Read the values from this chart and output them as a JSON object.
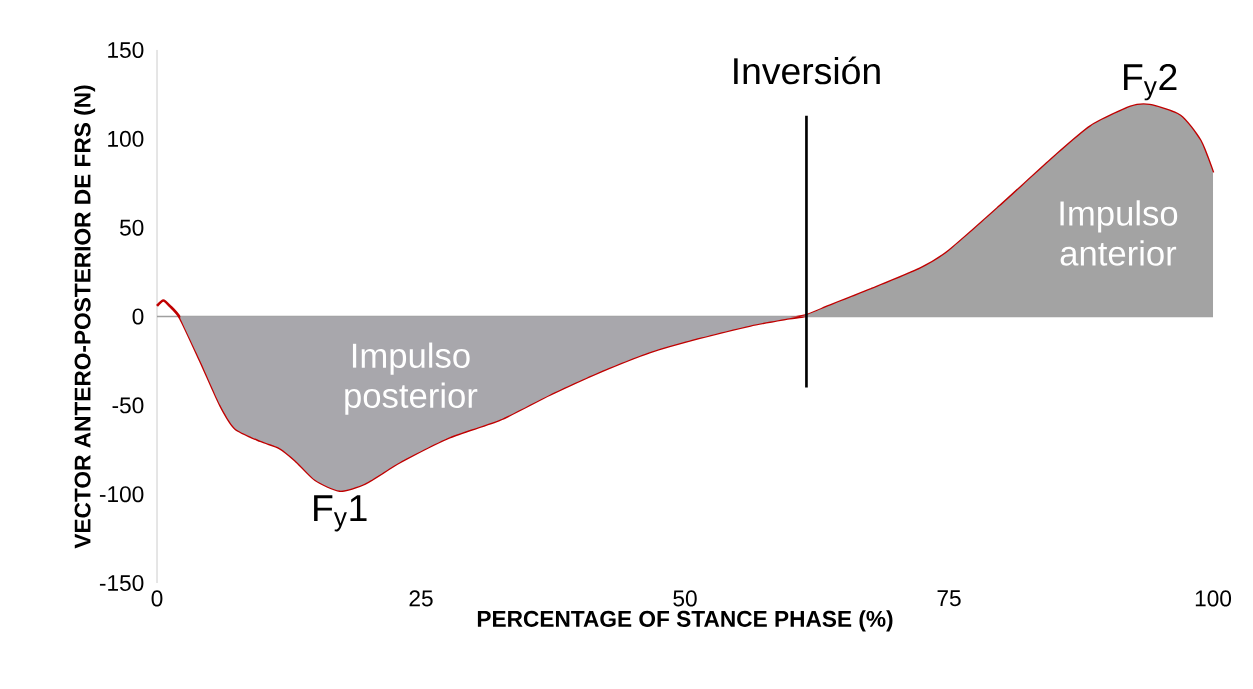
{
  "chart_data": {
    "type": "line",
    "xlabel": "PERCENTAGE OF STANCE PHASE (%)",
    "ylabel": "VECTOR ANTERO-POSTERIOR DE FRS (N)",
    "xlim": [
      0,
      100
    ],
    "ylim": [
      -150,
      150
    ],
    "xticks": [
      0,
      25,
      50,
      75,
      100
    ],
    "yticks": [
      -150,
      -100,
      -50,
      0,
      50,
      100,
      150
    ],
    "series": [
      {
        "color": "#c00000",
        "x": [
          0,
          0.6,
          1.2,
          2.2,
          4.1,
          6,
          7.4,
          9.8,
          11.6,
          13.1,
          15,
          17.3,
          19.7,
          23,
          27.7,
          32.5,
          37.2,
          42,
          46.7,
          51.4,
          56.2,
          59.9,
          61.4,
          63.7,
          67.5,
          72.3,
          75,
          79.8,
          84.6,
          88.4,
          92.2,
          94,
          96.9,
          98.8,
          100
        ],
        "values": [
          6,
          9,
          6,
          -1,
          -25,
          -50,
          -63,
          -70,
          -74,
          -81,
          -92,
          -98,
          -94,
          -82,
          -68,
          -58,
          -44,
          -31,
          -20,
          -12,
          -5,
          -1,
          0.5,
          6,
          15,
          27,
          37,
          62,
          88,
          107,
          118,
          119,
          113,
          99,
          81
        ]
      },
      {
        "type": "area",
        "color": "#a8a7ac",
        "x": [
          2.2,
          4.1,
          6,
          7.4,
          9.8,
          11.6,
          13.1,
          15,
          17.3,
          19.7,
          23,
          27.7,
          32.5,
          37.2,
          42,
          46.7,
          51.4,
          56.2,
          59.9,
          61.4
        ],
        "values": [
          -1,
          -25,
          -50,
          -63,
          -70,
          -74,
          -81,
          -92,
          -98,
          -94,
          -82,
          -68,
          -58,
          -44,
          -31,
          -20,
          -12,
          -5,
          -1,
          0.5
        ]
      },
      {
        "type": "area",
        "color": "#a3a3a3",
        "x": [
          61.4,
          63.7,
          67.5,
          72.3,
          75,
          79.8,
          84.6,
          88.4,
          92.2,
          94,
          96.9,
          98.8,
          100
        ],
        "values": [
          0.5,
          6,
          15,
          27,
          37,
          62,
          88,
          107,
          118,
          119,
          113,
          99,
          81
        ]
      }
    ],
    "ref_lines": [
      {
        "axis": "x",
        "value": 61.5,
        "label": "Inversión",
        "color": "#000000"
      }
    ],
    "annotations": [
      {
        "text": "F$_{y}$1",
        "x": 17.3,
        "y": -98
      },
      {
        "text": "F$_{y}$2",
        "x": 94,
        "y": 119
      },
      "Impulso posterior",
      "Impulso anterior"
    ]
  }
}
